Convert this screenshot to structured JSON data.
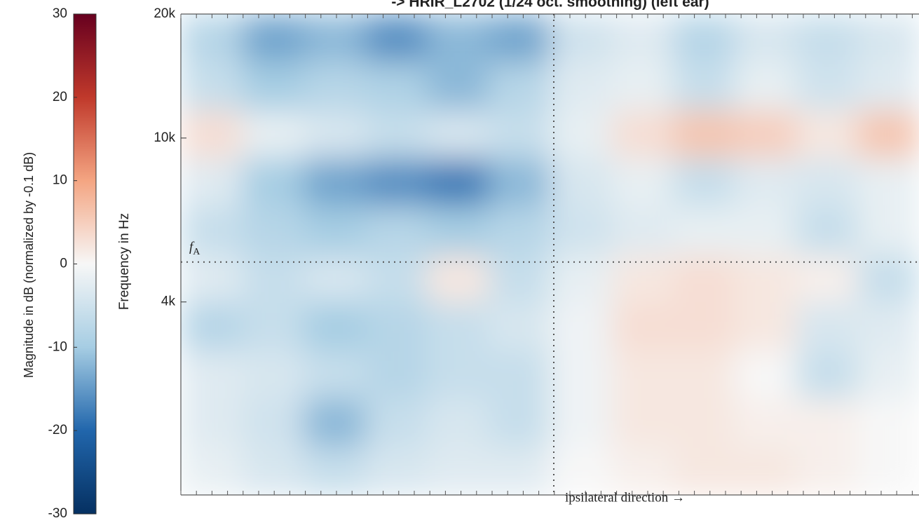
{
  "chart_data": {
    "type": "heatmap",
    "title": "-> HRIR_L2702 (1/24 oct. smoothing) (left ear)",
    "ylabel": "Frequency in Hz",
    "ylim": [
      1360,
      20000
    ],
    "log_y": true,
    "yticks": [
      {
        "value": 20000,
        "label": "20k"
      },
      {
        "value": 10000,
        "label": "10k"
      },
      {
        "value": 4000,
        "label": "4k"
      }
    ],
    "colorbar_label": "Magnitude in dB  (normalized by -0.1 dB)",
    "clim": [
      -30,
      30
    ],
    "colorbar_ticks": [
      30,
      20,
      10,
      0,
      -10,
      -20,
      -30
    ],
    "colormap": [
      "#053061",
      "#2166ac",
      "#a6cde3",
      "#f7f7f7",
      "#f4a582",
      "#c0392b",
      "#67001f"
    ],
    "hline": {
      "value": 5000,
      "symbol": "f",
      "subscript": "A"
    },
    "vline_label": "ipsilateral direction →",
    "z": [
      [
        -8,
        -14,
        -12,
        -16,
        -12,
        -14,
        -5,
        -3,
        -8,
        -4,
        -6,
        -4
      ],
      [
        -6,
        -10,
        -8,
        -9,
        -12,
        -8,
        -3,
        -2,
        -6,
        -2,
        -5,
        -3
      ],
      [
        3,
        -2,
        -4,
        -6,
        -4,
        -6,
        -2,
        3,
        6,
        5,
        2,
        6
      ],
      [
        -3,
        -10,
        -14,
        -16,
        -18,
        -12,
        -4,
        -2,
        -6,
        -3,
        -4,
        -2
      ],
      [
        -6,
        -8,
        -10,
        -8,
        -10,
        -8,
        -5,
        -3,
        -2,
        -2,
        -6,
        -2
      ],
      [
        -3,
        -6,
        -4,
        -6,
        2,
        -6,
        -2,
        2,
        3,
        2,
        1,
        -6
      ],
      [
        -8,
        -6,
        -10,
        -8,
        -6,
        -4,
        -1,
        3,
        3,
        2,
        -4,
        -3
      ],
      [
        -3,
        -4,
        -6,
        -8,
        -6,
        -6,
        -1,
        2,
        2,
        0,
        -6,
        -2
      ],
      [
        -3,
        -5,
        -12,
        -6,
        -4,
        -6,
        -1,
        2,
        2,
        1,
        1,
        0
      ],
      [
        -2,
        -4,
        -6,
        -4,
        -3,
        -3,
        0,
        1,
        2,
        2,
        1,
        0
      ]
    ]
  }
}
